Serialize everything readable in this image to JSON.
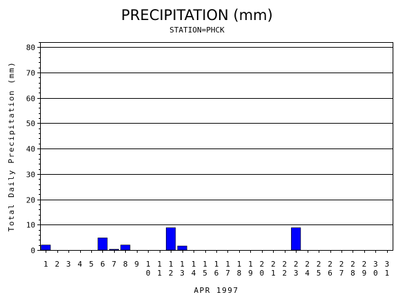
{
  "chart_data": {
    "type": "bar",
    "title": "PRECIPITATION (mm)",
    "subtitle": "STATION=PHCK",
    "xlabel": "APR 1997",
    "ylabel": "Total Daily Precipitation (mm)",
    "ylim": [
      0,
      82
    ],
    "yticks": [
      0,
      10,
      20,
      30,
      40,
      50,
      60,
      70,
      80
    ],
    "grid": true,
    "bar_color": "#0000ff",
    "categories": [
      "1",
      "2",
      "3",
      "4",
      "5",
      "6",
      "7",
      "8",
      "9",
      "10",
      "11",
      "12",
      "13",
      "14",
      "15",
      "16",
      "17",
      "18",
      "19",
      "20",
      "21",
      "22",
      "23",
      "24",
      "25",
      "26",
      "27",
      "28",
      "29",
      "30",
      "31"
    ],
    "values": [
      2.0,
      0,
      0,
      0,
      0,
      4.8,
      0.3,
      2.0,
      0,
      0,
      0,
      8.8,
      1.6,
      0,
      0,
      0,
      0,
      0,
      0,
      0,
      0,
      0,
      8.8,
      0,
      0,
      0,
      0,
      0,
      0,
      0,
      0
    ]
  }
}
